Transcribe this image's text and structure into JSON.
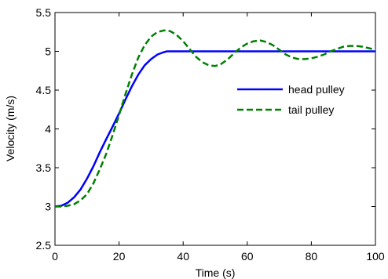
{
  "chart_data": {
    "type": "line",
    "title": "",
    "xlabel": "Time (s)",
    "ylabel": "Velocity (m/s)",
    "xlim": [
      0,
      100
    ],
    "ylim": [
      2.5,
      5.5
    ],
    "xticks": [
      0,
      20,
      40,
      60,
      80,
      100
    ],
    "yticks": [
      2.5,
      3,
      3.5,
      4,
      4.5,
      5,
      5.5
    ],
    "xtick_labels": [
      "0",
      "20",
      "40",
      "60",
      "80",
      "100"
    ],
    "ytick_labels": [
      "2.5",
      "3",
      "3.5",
      "4",
      "4.5",
      "5",
      "5.5"
    ],
    "grid": false,
    "legend_position": "right",
    "series": [
      {
        "name": "head pulley",
        "color": "#0000ff",
        "line_style": "solid",
        "x": [
          0,
          2,
          4,
          6,
          8,
          10,
          12,
          14,
          16,
          18,
          20,
          22,
          24,
          26,
          28,
          30,
          32,
          34,
          35,
          36,
          40,
          50,
          60,
          70,
          80,
          90,
          100
        ],
        "y": [
          3.0,
          3.01,
          3.05,
          3.12,
          3.22,
          3.36,
          3.52,
          3.7,
          3.87,
          4.03,
          4.2,
          4.38,
          4.55,
          4.7,
          4.82,
          4.9,
          4.96,
          4.99,
          5.0,
          5.0,
          5.0,
          5.0,
          5.0,
          5.0,
          5.0,
          5.0,
          5.0
        ]
      },
      {
        "name": "tail pulley",
        "color": "#008000",
        "line_style": "dashed",
        "x": [
          0,
          2,
          4,
          6,
          8,
          10,
          12,
          14,
          16,
          18,
          20,
          22,
          24,
          26,
          28,
          30,
          32,
          34,
          36,
          38,
          40,
          42,
          44,
          46,
          48,
          50,
          52,
          54,
          56,
          58,
          60,
          62,
          64,
          66,
          68,
          70,
          72,
          74,
          76,
          78,
          80,
          82,
          84,
          86,
          88,
          90,
          92,
          94,
          96,
          98,
          100
        ],
        "y": [
          3.0,
          3.0,
          3.01,
          3.03,
          3.08,
          3.16,
          3.3,
          3.48,
          3.68,
          3.92,
          4.18,
          4.45,
          4.7,
          4.92,
          5.08,
          5.19,
          5.25,
          5.27,
          5.26,
          5.21,
          5.13,
          5.03,
          4.93,
          4.86,
          4.82,
          4.81,
          4.84,
          4.9,
          4.98,
          5.05,
          5.1,
          5.13,
          5.14,
          5.12,
          5.08,
          5.02,
          4.96,
          4.92,
          4.9,
          4.9,
          4.91,
          4.93,
          4.96,
          5.0,
          5.03,
          5.06,
          5.07,
          5.07,
          5.06,
          5.04,
          5.02
        ]
      }
    ]
  }
}
